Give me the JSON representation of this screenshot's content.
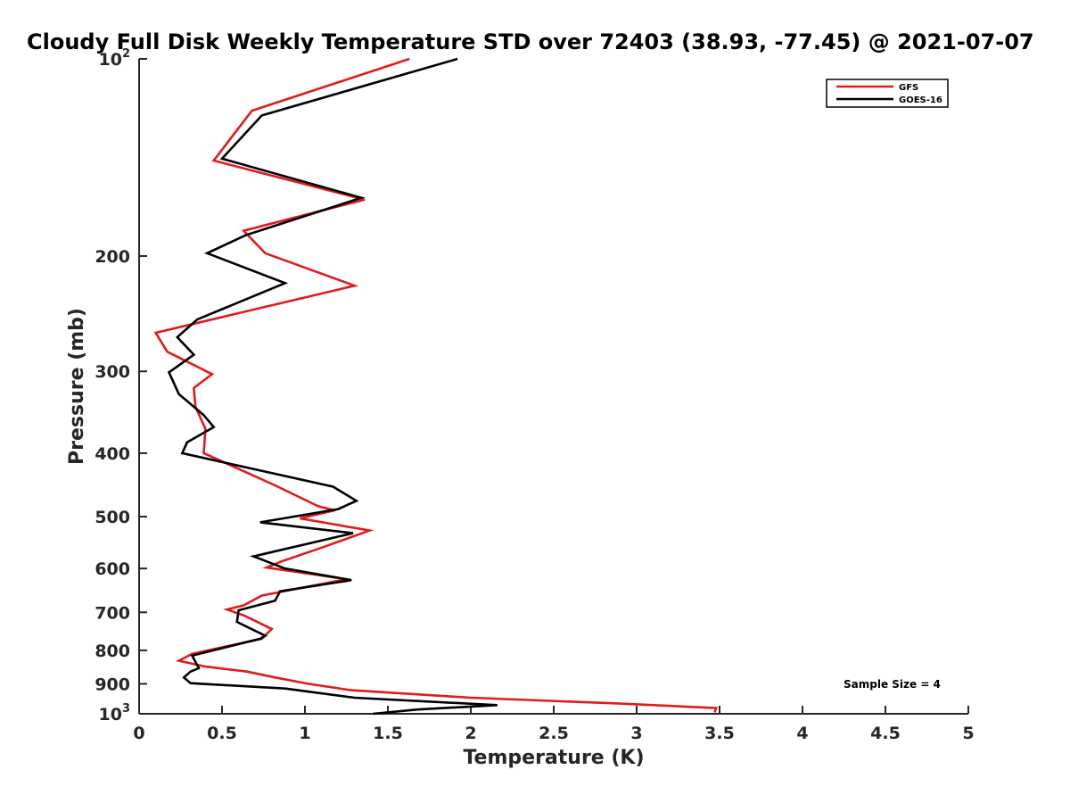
{
  "chart_data": {
    "type": "line",
    "title": "Cloudy Full Disk Weekly Temperature STD over 72403 (38.93, -77.45) @ 2021-07-07",
    "xlabel": "Temperature (K)",
    "ylabel": "Pressure (mb)",
    "xlim": [
      0,
      5
    ],
    "ylim": [
      100,
      1000
    ],
    "y_scale": "log",
    "y_reversed": true,
    "x_ticks": [
      "0",
      "0.5",
      "1",
      "1.5",
      "2",
      "2.5",
      "3",
      "3.5",
      "4",
      "4.5",
      "5"
    ],
    "y_ticks": [
      {
        "value": 100,
        "base": "10",
        "exp": "2"
      },
      {
        "value": 200,
        "label": "200"
      },
      {
        "value": 300,
        "label": "300"
      },
      {
        "value": 400,
        "label": "400"
      },
      {
        "value": 500,
        "label": "500"
      },
      {
        "value": 600,
        "label": "600"
      },
      {
        "value": 700,
        "label": "700"
      },
      {
        "value": 800,
        "label": "800"
      },
      {
        "value": 900,
        "label": "900"
      },
      {
        "value": 1000,
        "base": "10",
        "exp": "3"
      }
    ],
    "legend_position": "top-right",
    "grid": false,
    "annotation": "Sample Size = 4",
    "series": [
      {
        "name": "GFS",
        "color": "#e31a1c",
        "points": [
          [
            1.63,
            100
          ],
          [
            0.68,
            120
          ],
          [
            0.45,
            143
          ],
          [
            1.36,
            164
          ],
          [
            0.63,
            183
          ],
          [
            0.76,
            198
          ],
          [
            1.3,
            222
          ],
          [
            0.1,
            262
          ],
          [
            0.17,
            280
          ],
          [
            0.44,
            303
          ],
          [
            0.33,
            318
          ],
          [
            0.34,
            340
          ],
          [
            0.4,
            367
          ],
          [
            0.39,
            400
          ],
          [
            0.82,
            448
          ],
          [
            1.08,
            482
          ],
          [
            1.18,
            489
          ],
          [
            0.97,
            503
          ],
          [
            1.39,
            525
          ],
          [
            1.08,
            560
          ],
          [
            0.86,
            585
          ],
          [
            0.77,
            598
          ],
          [
            1.25,
            623
          ],
          [
            0.74,
            660
          ],
          [
            0.63,
            683
          ],
          [
            0.53,
            693
          ],
          [
            0.64,
            709
          ],
          [
            0.8,
            742
          ],
          [
            0.74,
            768
          ],
          [
            0.32,
            810
          ],
          [
            0.24,
            830
          ],
          [
            0.4,
            847
          ],
          [
            0.65,
            862
          ],
          [
            0.82,
            880
          ],
          [
            1.02,
            900
          ],
          [
            1.27,
            920
          ],
          [
            2.0,
            945
          ],
          [
            2.9,
            965
          ],
          [
            3.48,
            980
          ],
          [
            3.47,
            995
          ]
        ]
      },
      {
        "name": "GOES-16",
        "color": "#000000",
        "points": [
          [
            1.92,
            100
          ],
          [
            0.74,
            122
          ],
          [
            0.5,
            142
          ],
          [
            1.34,
            163
          ],
          [
            0.64,
            186
          ],
          [
            0.41,
            198
          ],
          [
            0.88,
            220
          ],
          [
            0.35,
            250
          ],
          [
            0.23,
            266
          ],
          [
            0.33,
            283
          ],
          [
            0.18,
            301
          ],
          [
            0.24,
            325
          ],
          [
            0.39,
            350
          ],
          [
            0.45,
            365
          ],
          [
            0.29,
            385
          ],
          [
            0.26,
            400
          ],
          [
            1.17,
            450
          ],
          [
            1.31,
            473
          ],
          [
            1.2,
            487
          ],
          [
            0.73,
            510
          ],
          [
            1.29,
            530
          ],
          [
            0.69,
            575
          ],
          [
            0.88,
            600
          ],
          [
            1.28,
            625
          ],
          [
            0.85,
            650
          ],
          [
            0.82,
            672
          ],
          [
            0.6,
            695
          ],
          [
            0.59,
            724
          ],
          [
            0.76,
            760
          ],
          [
            0.73,
            768
          ],
          [
            0.32,
            815
          ],
          [
            0.36,
            852
          ],
          [
            0.31,
            862
          ],
          [
            0.27,
            880
          ],
          [
            0.31,
            898
          ],
          [
            0.88,
            915
          ],
          [
            1.3,
            945
          ],
          [
            2.16,
            970
          ],
          [
            1.68,
            985
          ],
          [
            1.41,
            1000
          ]
        ]
      }
    ]
  }
}
